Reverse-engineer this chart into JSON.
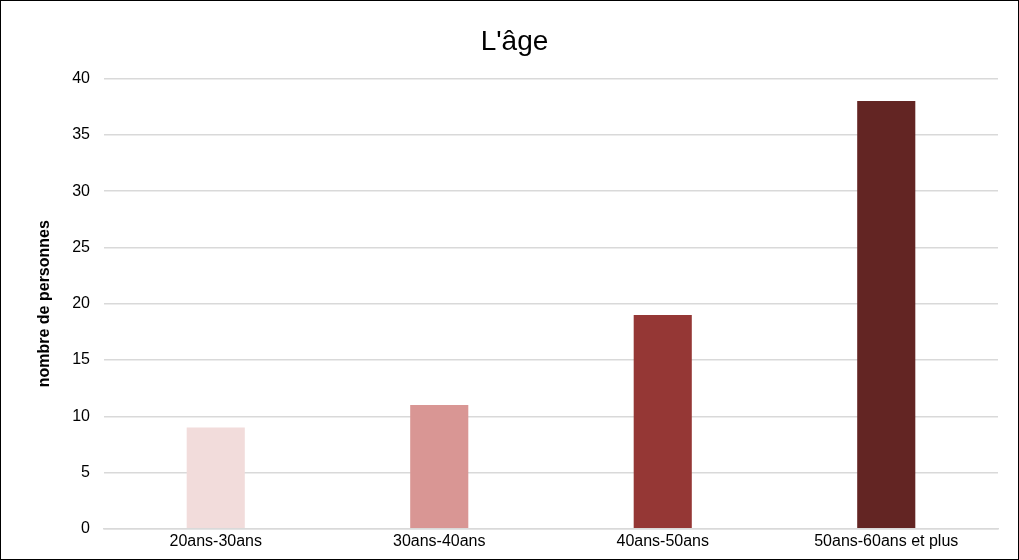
{
  "chart_data": {
    "type": "bar",
    "title": "L'âge",
    "ylabel": "nombre de personnes",
    "categories": [
      "20ans-30ans",
      "30ans-40ans",
      "40ans-50ans",
      "50ans-60ans et plus"
    ],
    "values": [
      9,
      11,
      19,
      38
    ],
    "colors": [
      "#f2dcdb",
      "#d99694",
      "#953735",
      "#632523"
    ],
    "ylim": [
      0,
      40
    ],
    "yticks": [
      0,
      5,
      10,
      15,
      20,
      25,
      30,
      35,
      40
    ],
    "grid": "y",
    "legend": false
  }
}
